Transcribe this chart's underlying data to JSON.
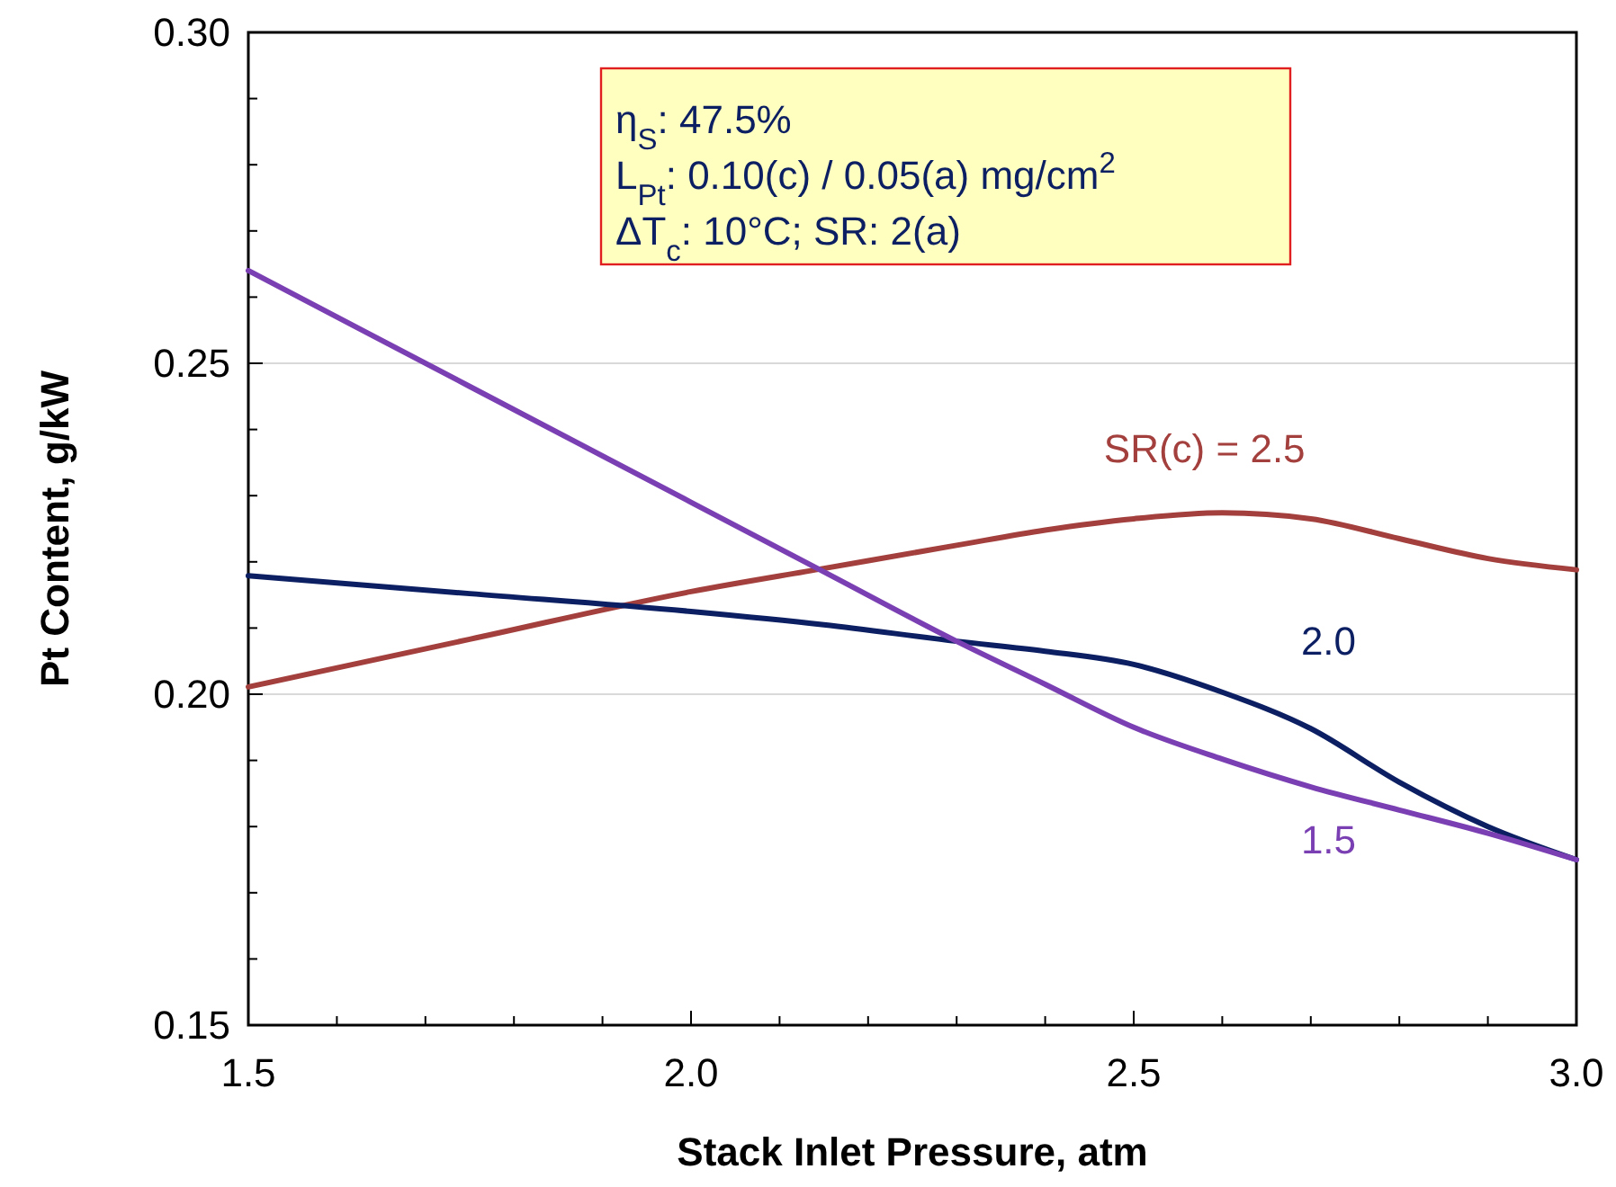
{
  "chart_data": {
    "type": "line",
    "xlabel": "Stack Inlet Pressure, atm",
    "ylabel": "Pt Content, g/kW",
    "xlim": [
      1.5,
      3.0
    ],
    "ylim": [
      0.15,
      0.3
    ],
    "xticks": [
      1.5,
      {
        "value": 1.6,
        "label": null
      },
      {
        "value": 1.7,
        "label": null
      },
      {
        "value": 1.8,
        "label": null
      },
      {
        "value": 1.9,
        "label": null
      },
      {
        "value": 2.0,
        "label": "2.0"
      },
      {
        "value": 2.1,
        "label": null
      },
      {
        "value": 2.2,
        "label": null
      },
      {
        "value": 2.3,
        "label": null
      },
      {
        "value": 2.4,
        "label": null
      },
      2.5,
      {
        "value": 2.6,
        "label": null
      },
      {
        "value": 2.7,
        "label": null
      },
      {
        "value": 2.8,
        "label": null
      },
      {
        "value": 2.9,
        "label": null
      },
      {
        "value": 3.0,
        "label": "3.0"
      }
    ],
    "yticks": [
      0.15,
      {
        "value": 0.16,
        "label": null
      },
      {
        "value": 0.17,
        "label": null
      },
      {
        "value": 0.18,
        "label": null
      },
      {
        "value": 0.19,
        "label": null
      },
      {
        "value": 0.2,
        "label": "0.20"
      },
      {
        "value": 0.21,
        "label": null
      },
      {
        "value": 0.22,
        "label": null
      },
      {
        "value": 0.23,
        "label": null
      },
      {
        "value": 0.24,
        "label": null
      },
      0.25,
      {
        "value": 0.26,
        "label": null
      },
      {
        "value": 0.27,
        "label": null
      },
      {
        "value": 0.28,
        "label": null
      },
      {
        "value": 0.29,
        "label": null
      },
      {
        "value": 0.3,
        "label": "0.30"
      }
    ],
    "grid": "y",
    "marker": "none",
    "line_style": "solid",
    "x": [
      1.5,
      1.75,
      2.0,
      2.15,
      2.3,
      2.4,
      2.5,
      2.6,
      2.7,
      2.8,
      2.9,
      3.0
    ],
    "series": [
      {
        "name": "SR(c) = 2.5",
        "color": "#a3403d",
        "values": [
          0.2011,
          0.2083,
          0.2155,
          0.219,
          0.2225,
          0.2248,
          0.2265,
          0.2274,
          0.2265,
          0.2235,
          0.2205,
          0.2188
        ]
      },
      {
        "name": "2.0",
        "color": "#0c1f62",
        "values": [
          0.2179,
          0.2152,
          0.2125,
          0.2105,
          0.208,
          0.2065,
          0.2045,
          0.2003,
          0.1948,
          0.1867,
          0.18,
          0.175
        ]
      },
      {
        "name": "1.5",
        "color": "#7a3fb2",
        "values": [
          0.264,
          0.2465,
          0.229,
          0.2185,
          0.208,
          0.2015,
          0.195,
          0.1902,
          0.186,
          0.1825,
          0.179,
          0.175
        ]
      }
    ],
    "annotations": [
      "η$_{S}$: 47.5%\nL$_{Pt}$: 0.10(c) / 0.05(a) mg/cm$^{2}$\nΔT$_{c}$: 10°C; SR: 2(a)"
    ]
  }
}
